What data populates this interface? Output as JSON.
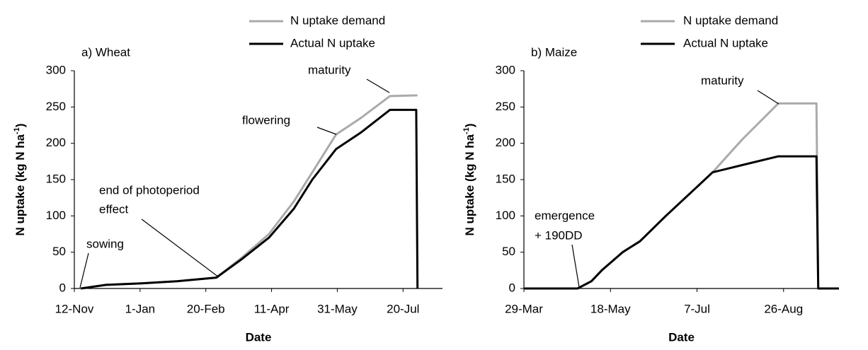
{
  "chart_data": [
    {
      "type": "line",
      "title": "a) Wheat",
      "x_label": "Date",
      "y_label_parts": [
        "N uptake (kg N ha",
        "-1",
        ")"
      ],
      "x": [
        "12-Nov",
        "17-Nov",
        "6-Dec",
        "2-Jan",
        "29-Jan",
        "28-Feb",
        "19-Mar",
        "9-Apr",
        "28-Apr",
        "12-May",
        "30-May",
        "18-Jun",
        "10-Jul",
        "30-Jul",
        "31-Jul"
      ],
      "series": [
        {
          "name": "N uptake demand",
          "color": "#aaaaaa",
          "values": [
            null,
            0,
            5,
            7,
            10,
            15,
            42,
            75,
            120,
            160,
            212,
            235,
            265,
            266,
            266
          ]
        },
        {
          "name": "Actual N uptake",
          "color": "#000000",
          "values": [
            null,
            0,
            5,
            7,
            10,
            15,
            40,
            70,
            110,
            150,
            192,
            215,
            246,
            246,
            0
          ]
        }
      ],
      "xlim": [
        "12-Nov",
        "19-Aug"
      ],
      "xticks": [
        "12-Nov",
        "1-Jan",
        "20-Feb",
        "11-Apr",
        "31-May",
        "20-Jul"
      ],
      "ylim": [
        0,
        300
      ],
      "yticks": [
        0,
        50,
        100,
        150,
        200,
        250,
        300
      ],
      "grid": false,
      "annotations": [
        [
          "sowing"
        ],
        [
          "end of photoperiod",
          "effect"
        ],
        [
          "flowering"
        ],
        [
          "maturity"
        ]
      ]
    },
    {
      "type": "line",
      "title": "b) Maize",
      "x_label": "Date",
      "y_label_parts": [
        "N uptake (kg N ha",
        "-1",
        ")"
      ],
      "x": [
        "29-Mar",
        "29-Apr",
        "7-May",
        "13-May",
        "25-May",
        "4-Jun",
        "19-Jun",
        "7-Jul",
        "16-Jul",
        "2-Aug",
        "23-Aug",
        "14-Sep",
        "15-Sep",
        "27-Sep"
      ],
      "series": [
        {
          "name": "N uptake demand",
          "color": "#aaaaaa",
          "values": [
            0,
            0,
            10,
            25,
            50,
            65,
            100,
            140,
            160,
            205,
            255,
            255,
            0,
            0
          ]
        },
        {
          "name": "Actual N uptake",
          "color": "#000000",
          "values": [
            0,
            0,
            10,
            25,
            50,
            65,
            100,
            140,
            160,
            170,
            182,
            182,
            0,
            0
          ]
        }
      ],
      "xlim": [
        "29-Mar",
        "27-Sep"
      ],
      "xticks": [
        "29-Mar",
        "18-May",
        "7-Jul",
        "26-Aug"
      ],
      "ylim": [
        0,
        300
      ],
      "yticks": [
        0,
        50,
        100,
        150,
        200,
        250,
        300
      ],
      "grid": false,
      "annotations": [
        [
          "emergence",
          "+ 190DD"
        ],
        [
          "maturity"
        ]
      ]
    }
  ]
}
